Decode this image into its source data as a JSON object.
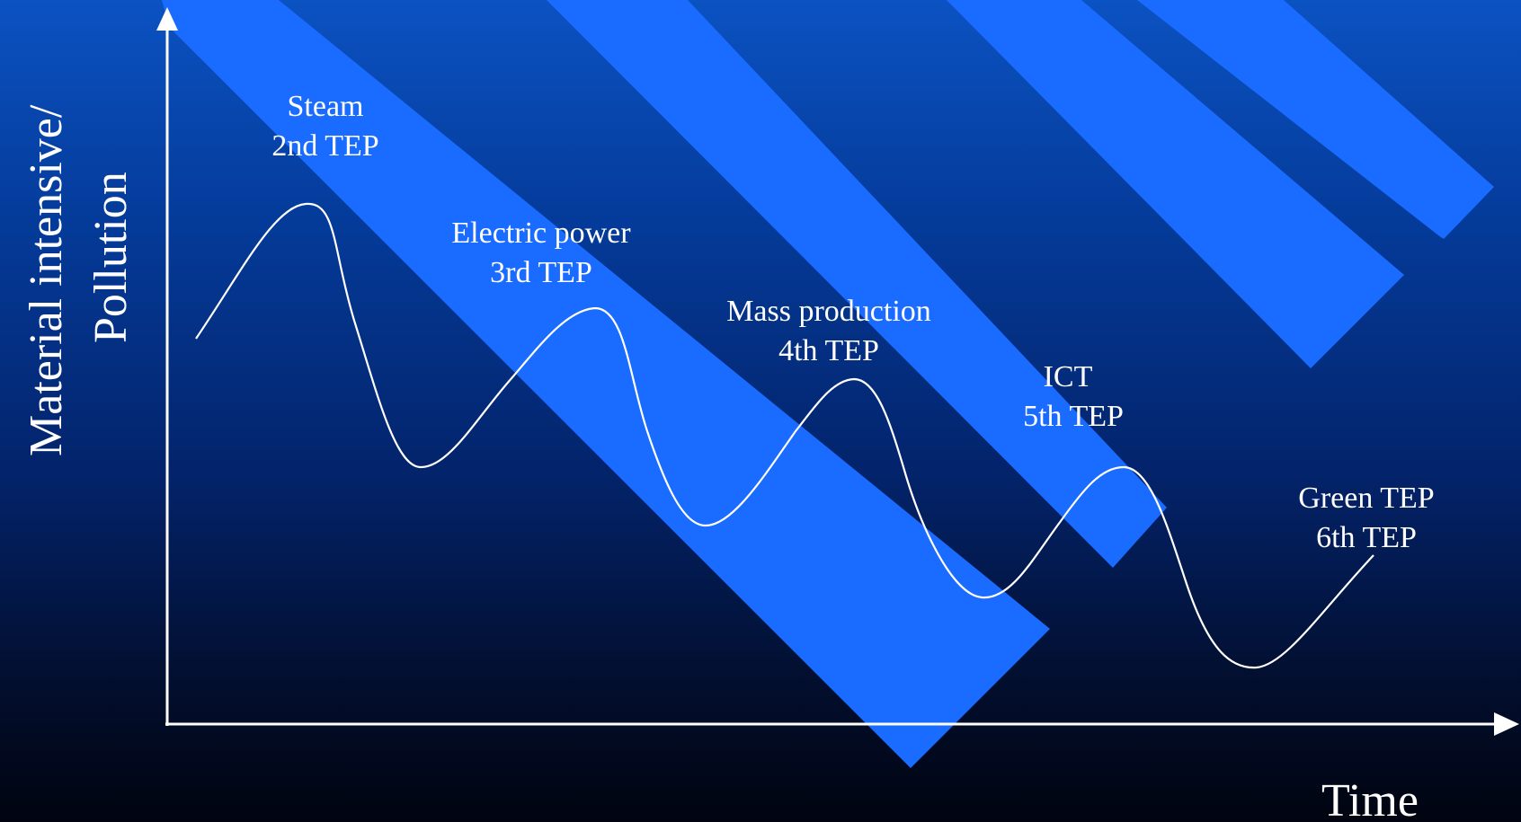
{
  "axes": {
    "y_label_line1": "Material intensive/",
    "y_label_line2": "Pollution",
    "x_label": "Time"
  },
  "paradigms": [
    {
      "name": "Steam",
      "tep": "2nd TEP"
    },
    {
      "name": "Electric power",
      "tep": "3rd TEP"
    },
    {
      "name": "Mass production",
      "tep": "4th TEP"
    },
    {
      "name": "ICT",
      "tep": "5th TEP"
    },
    {
      "name": "Green TEP",
      "tep": "6th TEP"
    }
  ],
  "colors": {
    "background_top": "#0b52c2",
    "background_bottom": "#010410",
    "band": "#1a6bff",
    "line": "#ffffff",
    "text": "#ffffff"
  }
}
